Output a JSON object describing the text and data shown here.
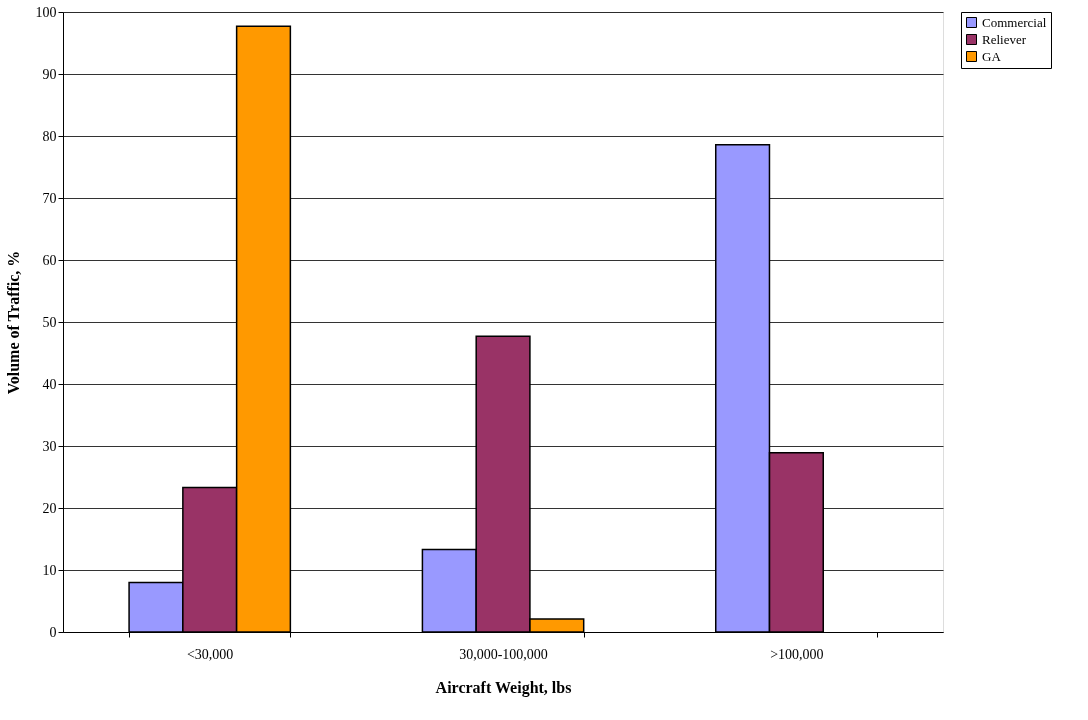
{
  "chart_data": {
    "type": "bar",
    "xlabel": "Aircraft Weight, lbs",
    "ylabel": "Volume of Traffic, %",
    "categories": [
      "<30,000",
      "30,000-100,000",
      ">100,000"
    ],
    "series": [
      {
        "name": "Commercial",
        "color": "#9999ff",
        "values": [
          8.0,
          13.3,
          78.6
        ]
      },
      {
        "name": "Reliever",
        "color": "#993366",
        "values": [
          23.3,
          47.7,
          28.9
        ]
      },
      {
        "name": "GA",
        "color": "#ff9900",
        "values": [
          97.7,
          2.1,
          null
        ]
      }
    ],
    "ylim": [
      0,
      100
    ],
    "yticks": [
      0,
      10,
      20,
      30,
      40,
      50,
      60,
      70,
      80,
      90,
      100
    ],
    "grid": "y",
    "legend": "right"
  }
}
